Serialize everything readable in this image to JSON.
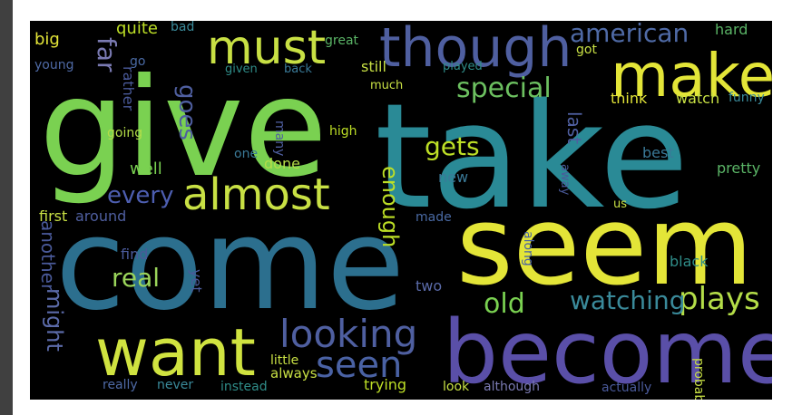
{
  "palette": {
    "green": "#7ad151",
    "lime": "#bddf26",
    "yellow": "#fde725",
    "teal": "#22a884",
    "cyan": "#2a788e",
    "steel": "#414487",
    "purple": "#440154",
    "page_bg": "#404040",
    "cloud_bg": "#000000"
  },
  "words": [
    {
      "text": "give",
      "color": "#7ad151"
    },
    {
      "text": "take",
      "color": "#2a8a96"
    },
    {
      "text": "come",
      "color": "#2c6f8e"
    },
    {
      "text": "seem",
      "color": "#e3e538"
    },
    {
      "text": "become",
      "color": "#5a4fa8"
    },
    {
      "text": "want",
      "color": "#d0e340"
    },
    {
      "text": "make",
      "color": "#e3e538"
    },
    {
      "text": "though",
      "color": "#4f5fa0"
    },
    {
      "text": "must",
      "color": "#c8e044"
    },
    {
      "text": "almost",
      "color": "#c8e044"
    },
    {
      "text": "looking",
      "color": "#4f5fa0"
    },
    {
      "text": "seen",
      "color": "#4a62a4"
    },
    {
      "text": "special",
      "color": "#6cc060"
    },
    {
      "text": "american",
      "color": "#4f6aa6"
    },
    {
      "text": "plays",
      "color": "#b4dd48"
    },
    {
      "text": "watching",
      "color": "#3a8a9a"
    },
    {
      "text": "old",
      "color": "#7ad151"
    },
    {
      "text": "real",
      "color": "#9ad45a"
    },
    {
      "text": "gets",
      "color": "#bddf26"
    },
    {
      "text": "every",
      "color": "#4d5eb0"
    },
    {
      "text": "enough",
      "color": "#bddf26"
    },
    {
      "text": "goes",
      "color": "#4f5fa0"
    },
    {
      "text": "far",
      "color": "#7a7ab2"
    },
    {
      "text": "might",
      "color": "#5b6aa8"
    },
    {
      "text": "another",
      "color": "#4a5a9a"
    },
    {
      "text": "quite",
      "color": "#bddf26"
    },
    {
      "text": "bad",
      "color": "#3a8a9a"
    },
    {
      "text": "big",
      "color": "#e3e538"
    },
    {
      "text": "young",
      "color": "#4f6aa6"
    },
    {
      "text": "great",
      "color": "#5ab466"
    },
    {
      "text": "hard",
      "color": "#5ab466"
    },
    {
      "text": "got",
      "color": "#c8e044"
    },
    {
      "text": "go",
      "color": "#4a6aa4"
    },
    {
      "text": "rather",
      "color": "#4a5a9a"
    },
    {
      "text": "given",
      "color": "#2f8c88"
    },
    {
      "text": "back",
      "color": "#3a7a98"
    },
    {
      "text": "still",
      "color": "#c8e044"
    },
    {
      "text": "played",
      "color": "#2f8c88"
    },
    {
      "text": "much",
      "color": "#c8e044"
    },
    {
      "text": "think",
      "color": "#e3e538"
    },
    {
      "text": "watch",
      "color": "#c8e044"
    },
    {
      "text": "funny",
      "color": "#3a8a9a"
    },
    {
      "text": "last",
      "color": "#4f5fa0"
    },
    {
      "text": "going",
      "color": "#b4dd48"
    },
    {
      "text": "high",
      "color": "#bddf26"
    },
    {
      "text": "many",
      "color": "#4f5fa0"
    },
    {
      "text": "one",
      "color": "#3a7a98"
    },
    {
      "text": "well",
      "color": "#7ad151"
    },
    {
      "text": "done",
      "color": "#b4dd48"
    },
    {
      "text": "new",
      "color": "#3a7a98"
    },
    {
      "text": "best",
      "color": "#3a7a98"
    },
    {
      "text": "pretty",
      "color": "#5ab466"
    },
    {
      "text": "away",
      "color": "#4a5a9a"
    },
    {
      "text": "us",
      "color": "#c8e044"
    },
    {
      "text": "first",
      "color": "#c8e044"
    },
    {
      "text": "around",
      "color": "#4f5fa0"
    },
    {
      "text": "made",
      "color": "#4a6aa4"
    },
    {
      "text": "find",
      "color": "#4a5a9a"
    },
    {
      "text": "yet",
      "color": "#4a5a9a"
    },
    {
      "text": "along",
      "color": "#4a62a4"
    },
    {
      "text": "black",
      "color": "#2f8c88"
    },
    {
      "text": "two",
      "color": "#5a6aa8"
    },
    {
      "text": "little",
      "color": "#c8e044"
    },
    {
      "text": "really",
      "color": "#4f6aa6"
    },
    {
      "text": "never",
      "color": "#3a8a9a"
    },
    {
      "text": "instead",
      "color": "#2f8c88"
    },
    {
      "text": "always",
      "color": "#c8e044"
    },
    {
      "text": "trying",
      "color": "#bddf26"
    },
    {
      "text": "look",
      "color": "#c8e044"
    },
    {
      "text": "although",
      "color": "#7a7ab2"
    },
    {
      "text": "actually",
      "color": "#4a5a9a"
    },
    {
      "text": "probably",
      "color": "#c8e044"
    }
  ]
}
